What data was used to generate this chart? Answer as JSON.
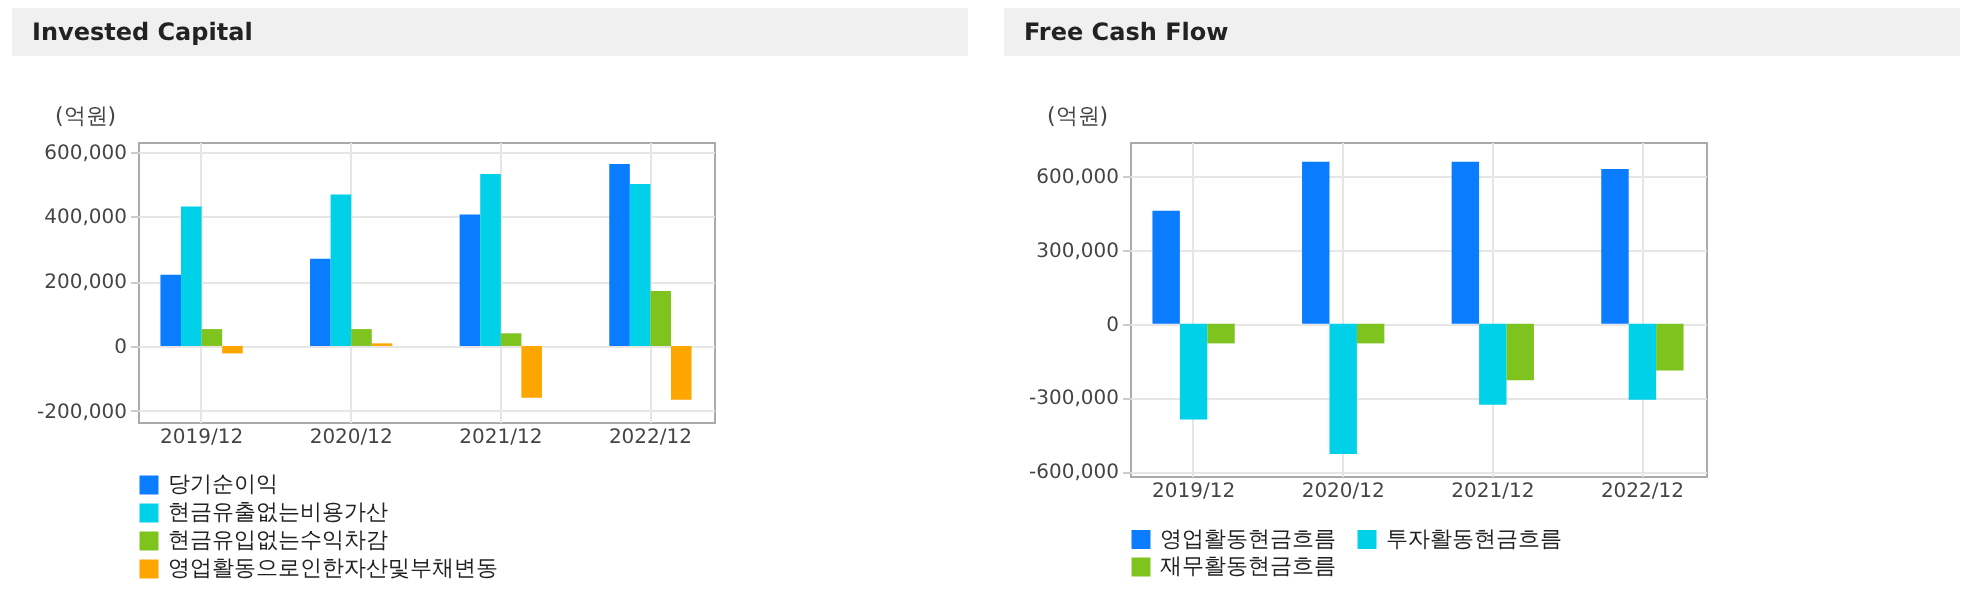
{
  "chart_data": [
    {
      "type": "bar",
      "title": "Invested Capital",
      "ylabel": "(억원)",
      "categories": [
        "2019/12",
        "2020/12",
        "2021/12",
        "2022/12"
      ],
      "series": [
        {
          "name": "당기순이익",
          "color": "#0a7cff",
          "values": [
            220000,
            269000,
            406000,
            562000
          ]
        },
        {
          "name": "현금유출없는비용가산",
          "color": "#00d0e8",
          "values": [
            431000,
            468000,
            531000,
            500000
          ]
        },
        {
          "name": "현금유입없는수익차감",
          "color": "#7ec31e",
          "values": [
            52000,
            52000,
            39000,
            170000
          ]
        },
        {
          "name": "영업활동으로인한자산및부채변동",
          "color": "#ffa500",
          "values": [
            -23000,
            8000,
            -160000,
            -166000
          ]
        }
      ],
      "ylim": [
        -235000,
        630000
      ],
      "yticks": [
        {
          "value": -200000,
          "label": "-200,000"
        },
        0,
        {
          "value": 200000,
          "label": "200,000"
        },
        {
          "value": 400000,
          "label": "400,000"
        },
        {
          "value": 600000,
          "label": "600,000"
        }
      ],
      "grid": true,
      "legend": "bottom"
    },
    {
      "type": "bar",
      "title": "Free Cash Flow",
      "ylabel": "(억원)",
      "categories": [
        "2019/12",
        "2020/12",
        "2021/12",
        "2022/12"
      ],
      "series": [
        {
          "name": "영업활동현금흐름",
          "color": "#0a7cff",
          "values": [
            460000,
            660000,
            660000,
            630000
          ]
        },
        {
          "name": "투자활동현금흐름",
          "color": "#00d0e8",
          "values": [
            -390000,
            -530000,
            -330000,
            -310000
          ]
        },
        {
          "name": "재무활동현금흐름",
          "color": "#7ec31e",
          "values": [
            -80000,
            -80000,
            -230000,
            -190000
          ]
        }
      ],
      "ylim": [
        -620000,
        740000
      ],
      "yticks": [
        {
          "value": -600000,
          "label": "-600,000"
        },
        {
          "value": -300000,
          "label": "-300,000"
        },
        0,
        {
          "value": 300000,
          "label": "300,000"
        },
        {
          "value": 600000,
          "label": "600,000"
        }
      ],
      "grid": true,
      "legend": "bottom"
    }
  ]
}
